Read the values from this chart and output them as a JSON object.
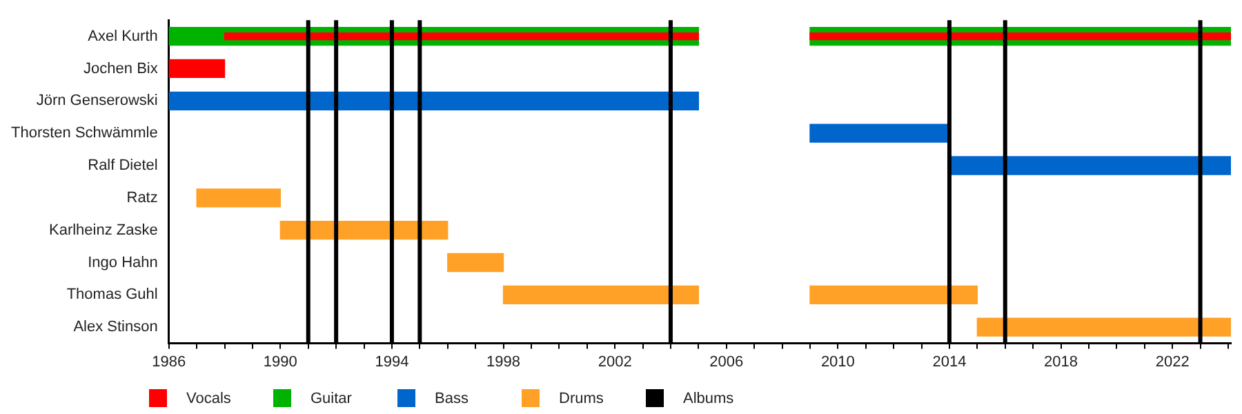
{
  "chart_data": {
    "type": "bar",
    "orientation": "horizontal",
    "legend": "bottom",
    "grid": false,
    "categories": [
      "Axel Kurth",
      "Jochen Bix",
      "Jörn Genserowski",
      "Thorsten Schwämmle",
      "Ralf Dietel",
      "Ratz",
      "Karlheinz Zaske",
      "Ingo Hahn",
      "Thomas Guhl",
      "Alex Stinson"
    ],
    "xlim": [
      1986,
      2024.1
    ],
    "xticks": [
      1986,
      {
        "value": 1987,
        "label": null
      },
      {
        "value": 1988,
        "label": null
      },
      {
        "value": 1989,
        "label": null
      },
      1990,
      {
        "value": 1991,
        "label": null
      },
      {
        "value": 1992,
        "label": null
      },
      {
        "value": 1993,
        "label": null
      },
      1994,
      {
        "value": 1995,
        "label": null
      },
      {
        "value": 1996,
        "label": null
      },
      {
        "value": 1997,
        "label": null
      },
      1998,
      {
        "value": 1999,
        "label": null
      },
      {
        "value": 2000,
        "label": null
      },
      {
        "value": 2001,
        "label": null
      },
      2002,
      {
        "value": 2003,
        "label": null
      },
      {
        "value": 2004,
        "label": null
      },
      {
        "value": 2005,
        "label": null
      },
      2006,
      {
        "value": 2007,
        "label": null
      },
      {
        "value": 2008,
        "label": null
      },
      {
        "value": 2009,
        "label": null
      },
      2010,
      {
        "value": 2011,
        "label": null
      },
      {
        "value": 2012,
        "label": null
      },
      {
        "value": 2013,
        "label": null
      },
      2014,
      {
        "value": 2015,
        "label": null
      },
      {
        "value": 2016,
        "label": null
      },
      {
        "value": 2017,
        "label": null
      },
      2018,
      {
        "value": 2019,
        "label": null
      },
      {
        "value": 2020,
        "label": null
      },
      {
        "value": 2021,
        "label": null
      },
      2022,
      {
        "value": 2023,
        "label": null
      },
      {
        "value": 2024,
        "label": null
      }
    ],
    "series": [
      {
        "name": "Vocals",
        "color": "#ff0000",
        "base": [
          1988,
          1986,
          null,
          null,
          null,
          null,
          null,
          null,
          null,
          null
        ],
        "values": [
          17,
          2,
          null,
          null,
          null,
          null,
          null,
          null,
          null,
          null
        ]
      },
      {
        "name": "Guitar",
        "color": "#00b300",
        "base": [
          1986,
          null,
          null,
          null,
          null,
          null,
          null,
          null,
          null,
          null
        ],
        "values": [
          19,
          null,
          null,
          null,
          null,
          null,
          null,
          null,
          null,
          null
        ]
      },
      {
        "name": "Bass",
        "color": "#0066cc",
        "base": [
          null,
          null,
          1986,
          2009,
          2014,
          null,
          null,
          null,
          null,
          null
        ],
        "values": [
          null,
          null,
          19,
          5,
          10.1,
          null,
          null,
          null,
          null,
          null
        ]
      },
      {
        "name": "Drums",
        "color": "#ffa126",
        "base": [
          null,
          null,
          null,
          null,
          null,
          1987,
          1990,
          1996,
          1998,
          2015
        ],
        "values": [
          null,
          null,
          null,
          null,
          null,
          3,
          6,
          2,
          7,
          9.1
        ]
      },
      {
        "color": "#ff0000",
        "base": [
          2009,
          null,
          null,
          null,
          null,
          null,
          null,
          null,
          null,
          null
        ],
        "values": [
          15.1,
          null,
          null,
          null,
          null,
          null,
          null,
          null,
          null,
          null
        ]
      },
      {
        "color": "#00b300",
        "base": [
          2009,
          null,
          null,
          null,
          null,
          null,
          null,
          null,
          null,
          null
        ],
        "values": [
          15.1,
          null,
          null,
          null,
          null,
          null,
          null,
          null,
          null,
          null
        ]
      },
      {
        "color": "#ffa126",
        "base": [
          null,
          null,
          null,
          null,
          null,
          null,
          null,
          null,
          2009,
          null
        ],
        "values": [
          null,
          null,
          null,
          null,
          null,
          null,
          null,
          null,
          6,
          null
        ]
      }
    ],
    "ref_lines": [
      {
        "axis": "x",
        "value": 1991,
        "label": "Albums",
        "color": "#000000"
      },
      {
        "axis": "x",
        "value": 1992,
        "color": "#000000"
      },
      {
        "axis": "x",
        "value": 1994,
        "color": "#000000"
      },
      {
        "axis": "x",
        "value": 1995,
        "color": "#000000"
      },
      {
        "axis": "x",
        "value": 2004,
        "color": "#000000"
      },
      {
        "axis": "x",
        "value": 2014,
        "color": "#000000"
      },
      {
        "axis": "x",
        "value": 2016,
        "color": "#000000"
      },
      {
        "axis": "x",
        "value": 2023,
        "color": "#000000"
      }
    ]
  }
}
